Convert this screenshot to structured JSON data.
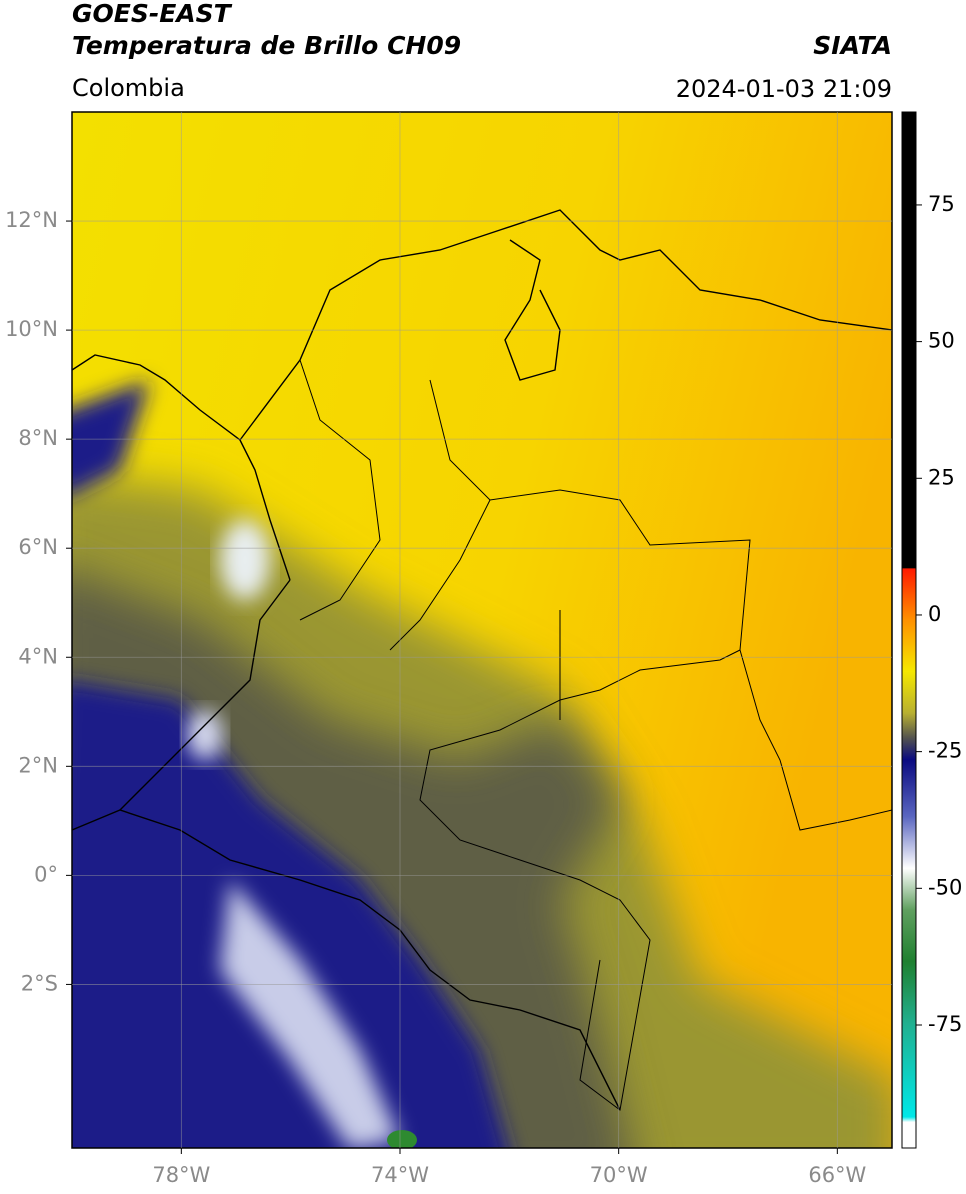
{
  "header": {
    "satellite": "GOES-EAST",
    "product": "Temperatura de Brillo CH09",
    "source": "SIATA",
    "region": "Colombia",
    "datetime": "2024-01-03 21:09"
  },
  "map": {
    "xlim": [
      -80,
      -65
    ],
    "ylim": [
      -5,
      14
    ],
    "xticks": [
      {
        "value": -78,
        "label": "78°W"
      },
      {
        "value": -74,
        "label": "74°W"
      },
      {
        "value": -70,
        "label": "70°W"
      },
      {
        "value": -66,
        "label": "66°W"
      }
    ],
    "yticks": [
      {
        "value": 12,
        "label": "12°N"
      },
      {
        "value": 10,
        "label": "10°N"
      },
      {
        "value": 8,
        "label": "8°N"
      },
      {
        "value": 6,
        "label": "6°N"
      },
      {
        "value": 4,
        "label": "4°N"
      },
      {
        "value": 2,
        "label": "2°N"
      },
      {
        "value": 0,
        "label": "0°"
      },
      {
        "value": -2,
        "label": "2°S"
      }
    ],
    "grid": true
  },
  "colorbar": {
    "lim": [
      -97.5,
      92
    ],
    "ticks": [
      75,
      50,
      25,
      0,
      -25,
      -50,
      -75
    ]
  }
}
